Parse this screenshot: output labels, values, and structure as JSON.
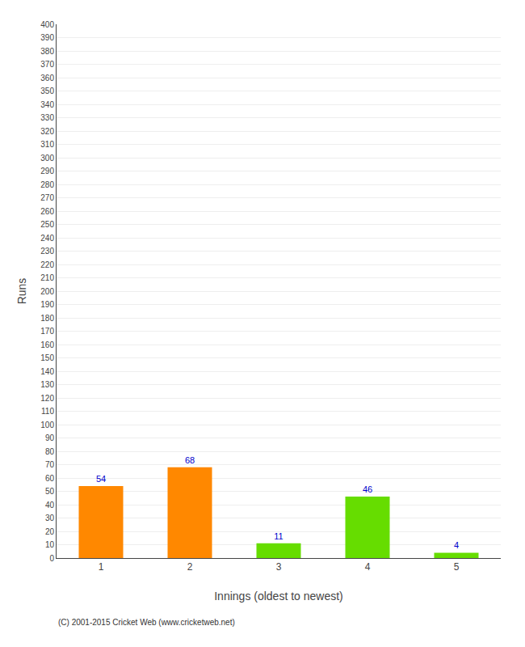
{
  "chart_data": {
    "type": "bar",
    "categories": [
      "1",
      "2",
      "3",
      "4",
      "5"
    ],
    "values": [
      54,
      68,
      11,
      46,
      4
    ],
    "colors": [
      "#ff8800",
      "#ff8800",
      "#66dd00",
      "#66dd00",
      "#66dd00"
    ],
    "xlabel": "Innings (oldest to newest)",
    "ylabel": "Runs",
    "ylim": [
      0,
      400
    ],
    "yticks": [
      0,
      10,
      20,
      30,
      40,
      50,
      60,
      70,
      80,
      90,
      100,
      110,
      120,
      130,
      140,
      150,
      160,
      170,
      180,
      190,
      200,
      210,
      220,
      230,
      240,
      250,
      260,
      270,
      280,
      290,
      300,
      310,
      320,
      330,
      340,
      350,
      360,
      370,
      380,
      390,
      400
    ],
    "grid": true,
    "data_labels": true,
    "annotations": [
      "(C) 2001-2015 Cricket Web (www.cricketweb.net)"
    ]
  }
}
